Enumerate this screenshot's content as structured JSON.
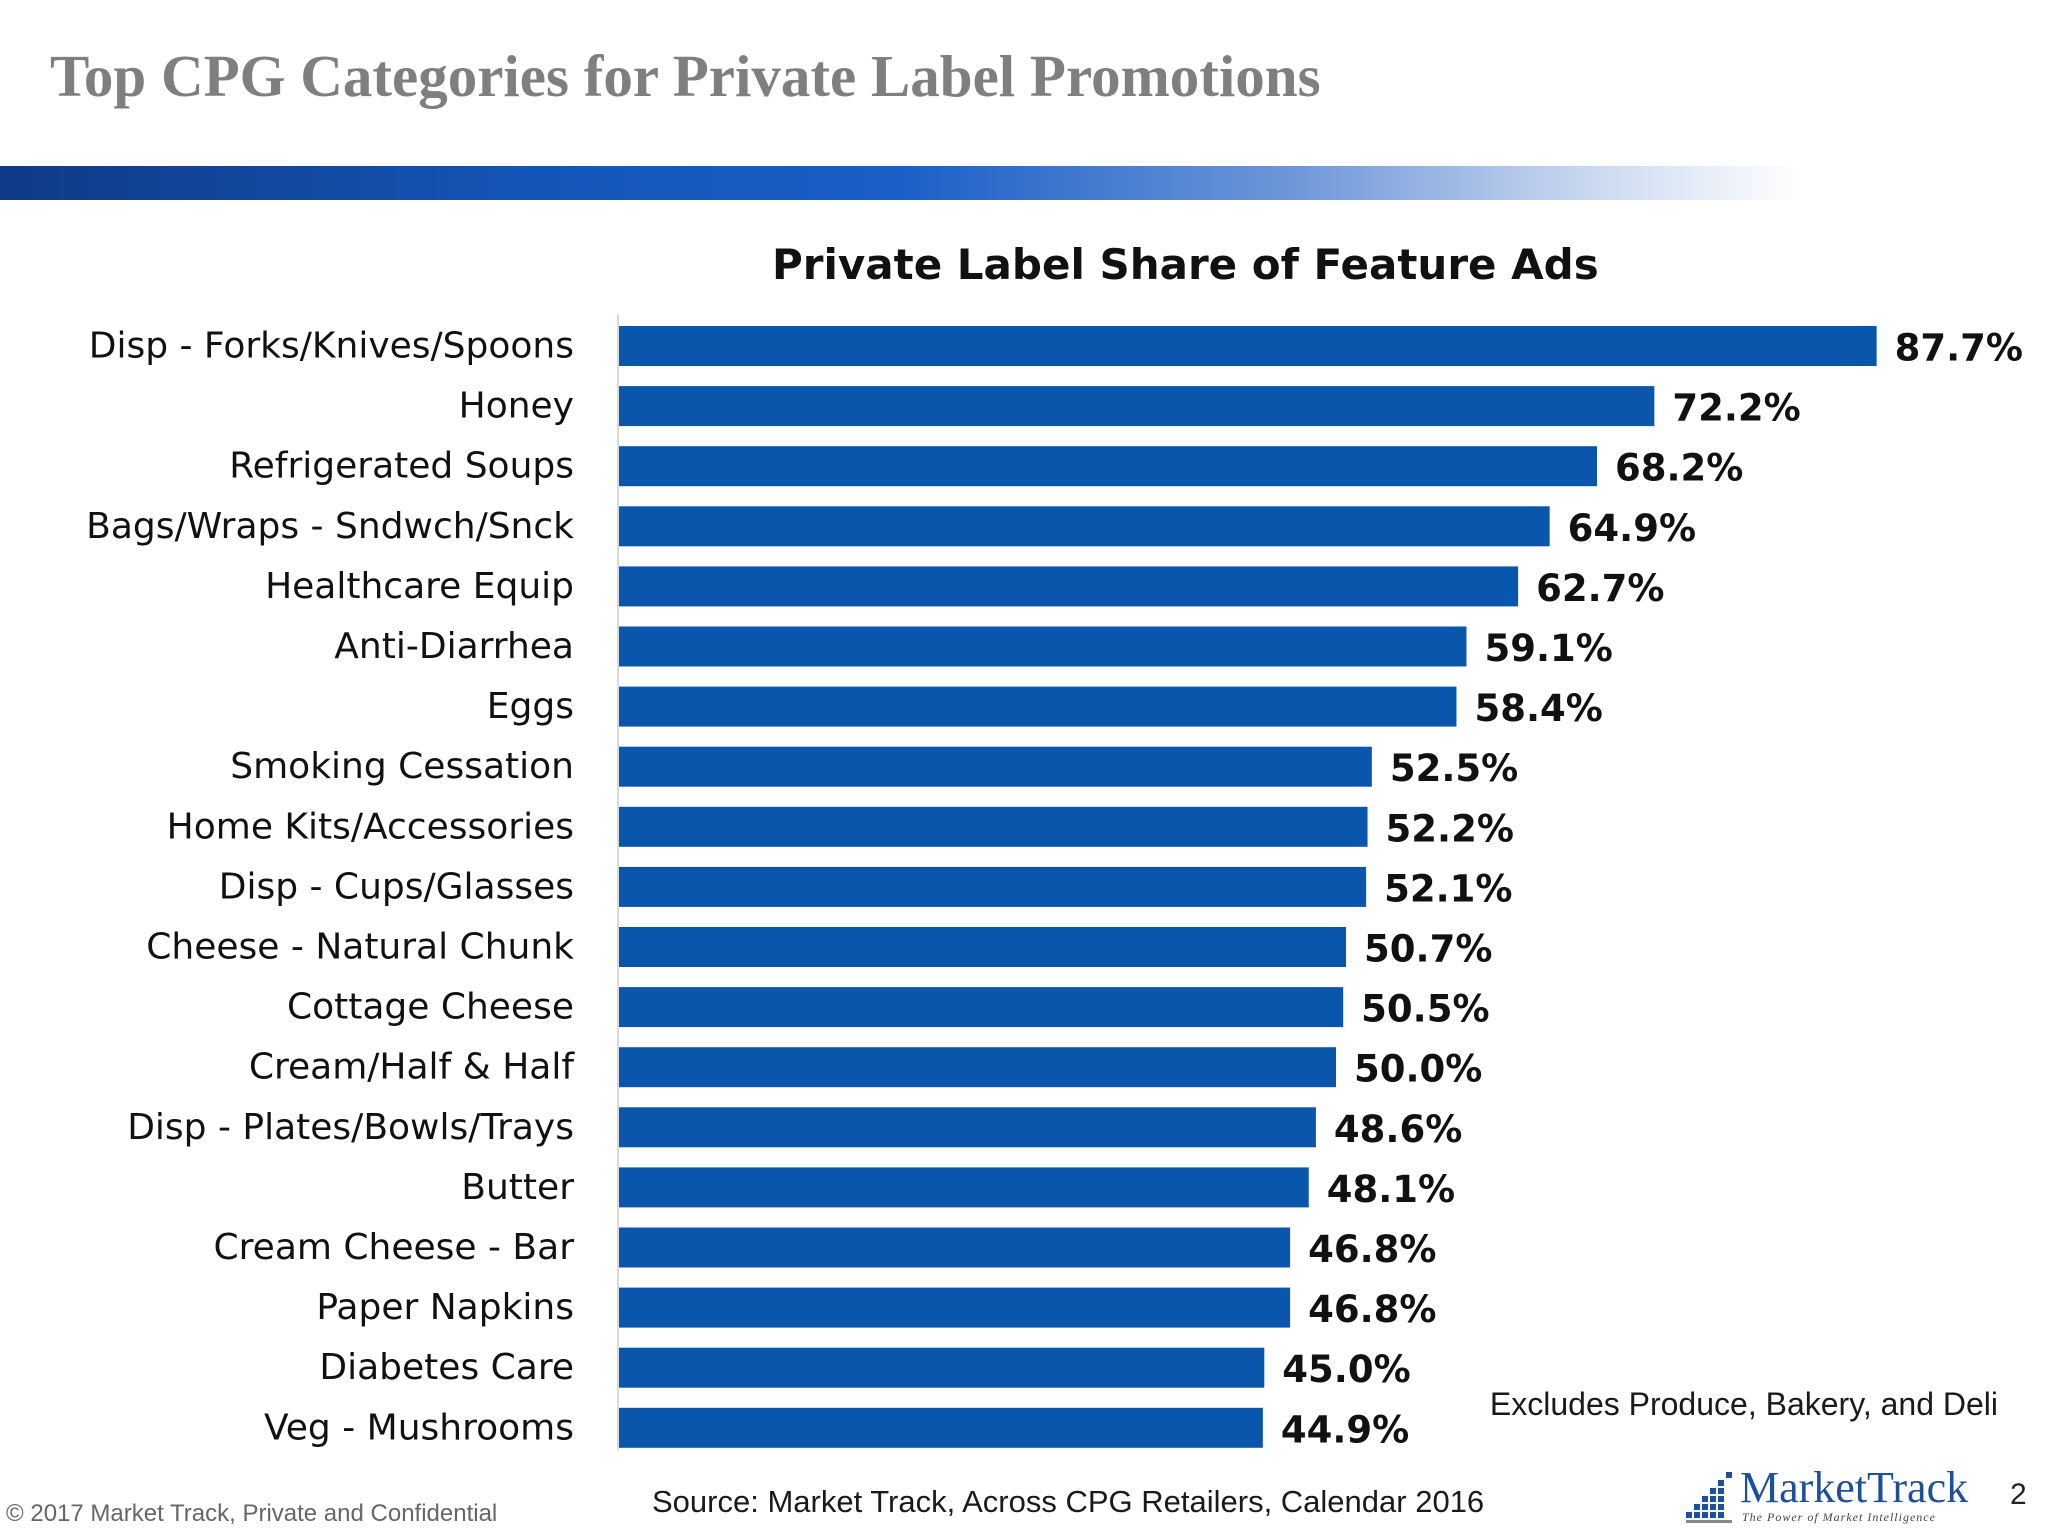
{
  "slide": {
    "title": "Top CPG Categories for Private Label Promotions",
    "note": "Excludes Produce, Bakery, and Deli",
    "source": "Source:  Market Track, Across CPG Retailers, Calendar 2016",
    "copyright": "© 2017 Market Track, Private and Confidential",
    "page_number": "2",
    "logo": {
      "name": "MarketTrack",
      "tagline": "The Power of Market Intelligence"
    }
  },
  "colors": {
    "bar": "#0a56ad",
    "band_dark": "#103a86",
    "title_gray": "#7f7f7f",
    "logo_blue": "#1e4f9c"
  },
  "chart_data": {
    "type": "bar",
    "orientation": "horizontal",
    "title": "Private Label Share of Feature Ads",
    "xlabel": "",
    "ylabel": "",
    "xlim": [
      0,
      100
    ],
    "value_format": "percent_1dp",
    "grid": false,
    "legend": "none",
    "categories": [
      "Disp - Forks/Knives/Spoons",
      "Honey",
      "Refrigerated Soups",
      "Bags/Wraps - Sndwch/Snck",
      "Healthcare Equip",
      "Anti-Diarrhea",
      "Eggs",
      "Smoking Cessation",
      "Home Kits/Accessories",
      "Disp - Cups/Glasses",
      "Cheese - Natural Chunk",
      "Cottage Cheese",
      "Cream/Half & Half",
      "Disp - Plates/Bowls/Trays",
      "Butter",
      "Cream Cheese - Bar",
      "Paper Napkins",
      "Diabetes Care",
      "Veg - Mushrooms"
    ],
    "values": [
      87.7,
      72.2,
      68.2,
      64.9,
      62.7,
      59.1,
      58.4,
      52.5,
      52.2,
      52.1,
      50.7,
      50.5,
      50.0,
      48.6,
      48.1,
      46.8,
      46.8,
      45.0,
      44.9
    ]
  }
}
